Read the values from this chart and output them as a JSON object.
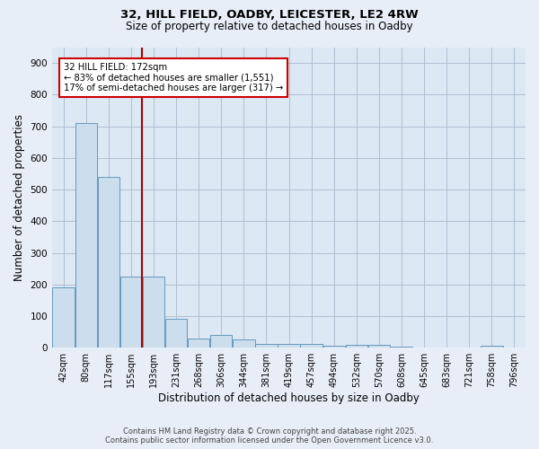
{
  "title1": "32, HILL FIELD, OADBY, LEICESTER, LE2 4RW",
  "title2": "Size of property relative to detached houses in Oadby",
  "xlabel": "Distribution of detached houses by size in Oadby",
  "ylabel": "Number of detached properties",
  "categories": [
    "42sqm",
    "80sqm",
    "117sqm",
    "155sqm",
    "193sqm",
    "231sqm",
    "268sqm",
    "306sqm",
    "344sqm",
    "381sqm",
    "419sqm",
    "457sqm",
    "494sqm",
    "532sqm",
    "570sqm",
    "608sqm",
    "645sqm",
    "683sqm",
    "721sqm",
    "758sqm",
    "796sqm"
  ],
  "values": [
    190,
    710,
    540,
    225,
    225,
    90,
    30,
    40,
    25,
    12,
    12,
    12,
    5,
    8,
    8,
    4,
    0,
    0,
    0,
    7,
    0
  ],
  "bar_color": "#ccdded",
  "bar_edge_color": "#6699bb",
  "vline_color": "#aa0000",
  "annotation_box_text": "32 HILL FIELD: 172sqm\n← 83% of detached houses are smaller (1,551)\n17% of semi-detached houses are larger (317) →",
  "annotation_box_color": "#cc0000",
  "annotation_text_color": "#000000",
  "annotation_bg": "#ffffff",
  "ylim": [
    0,
    950
  ],
  "yticks": [
    0,
    100,
    200,
    300,
    400,
    500,
    600,
    700,
    800,
    900
  ],
  "grid_color": "#aab8cc",
  "bg_color": "#dde8f5",
  "fig_bg_color": "#e8eef8",
  "footer1": "Contains HM Land Registry data © Crown copyright and database right 2025.",
  "footer2": "Contains public sector information licensed under the Open Government Licence v3.0."
}
